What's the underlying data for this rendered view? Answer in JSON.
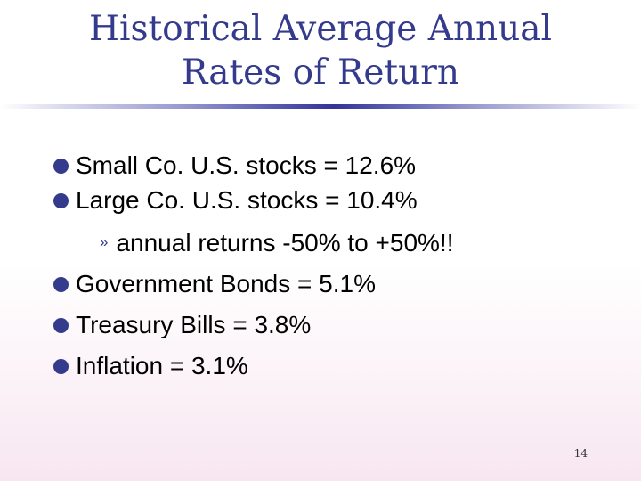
{
  "slide": {
    "title_line_1": "Historical Average Annual",
    "title_line_2": "Rates of Return",
    "bullets": [
      "Small Co. U.S. stocks = 12.6%",
      "Large Co. U.S. stocks = 10.4%",
      "Government Bonds = 5.1%",
      "Treasury Bills = 3.8%",
      "Inflation = 3.1%"
    ],
    "sub_bullet": {
      "marker": "»",
      "text": "annual returns -50% to +50%!!"
    },
    "page_number": "14"
  },
  "colors": {
    "title": "#343a8c",
    "bullet": "#343a8c",
    "text": "#000000"
  }
}
